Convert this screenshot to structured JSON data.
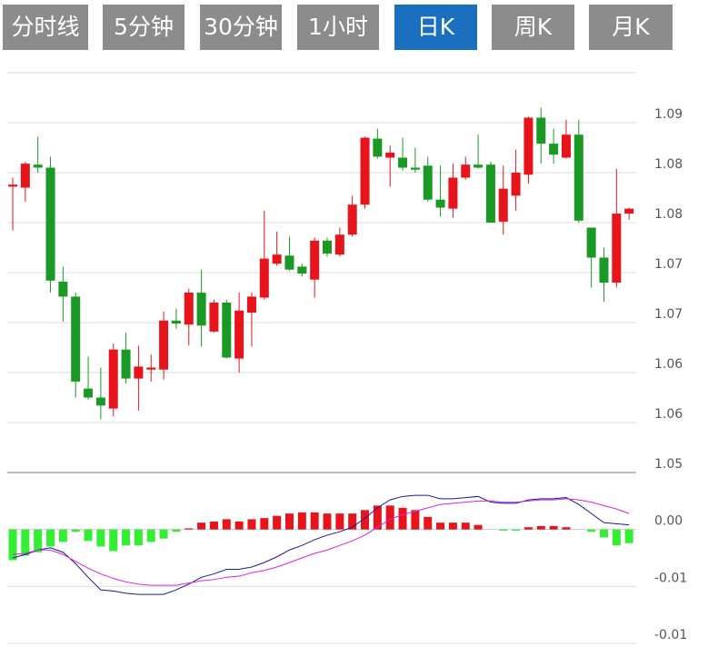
{
  "tabs": {
    "items": [
      "分时线",
      "5分钟",
      "30分钟",
      "1小时",
      "日K",
      "周K",
      "月K"
    ],
    "active": 4
  },
  "chart_data": [
    {
      "type": "candlestick",
      "up_color": "#e8141b",
      "down_color": "#1a9a24",
      "grid": true,
      "ylim": [
        1.0525,
        1.0925
      ],
      "yticks": [
        {
          "value": 1.0525,
          "label": "1.05"
        },
        {
          "value": 1.0575,
          "label": "1.06"
        },
        {
          "value": 1.0625,
          "label": "1.06"
        },
        {
          "value": 1.0675,
          "label": "1.07"
        },
        {
          "value": 1.0725,
          "label": "1.07"
        },
        {
          "value": 1.0775,
          "label": "1.08"
        },
        {
          "value": 1.0825,
          "label": "1.08"
        },
        {
          "value": 1.0875,
          "label": "1.09"
        }
      ],
      "open": [
        1.0811,
        1.081,
        1.0833,
        1.083,
        1.0716,
        1.0701,
        1.0609,
        1.06,
        1.0589,
        1.0648,
        1.0619,
        1.0628,
        1.0628,
        1.0677,
        1.0673,
        1.0705,
        1.0666,
        1.0695,
        1.0639,
        1.0685,
        1.07,
        1.0734,
        1.0742,
        1.0731,
        1.0718,
        1.0757,
        1.0743,
        1.0763,
        1.0793,
        1.0859,
        1.084,
        1.084,
        1.083,
        1.0832,
        1.0798,
        1.0789,
        1.082,
        1.0833,
        1.0833,
        1.0776,
        1.0802,
        1.0823,
        1.088,
        1.0854,
        1.084,
        1.0863,
        1.077,
        1.074,
        1.0715,
        1.0784
      ],
      "high": [
        1.082,
        1.0836,
        1.0861,
        1.0841,
        1.0731,
        1.0705,
        1.0641,
        1.063,
        1.0654,
        1.0665,
        1.0652,
        1.0643,
        1.0686,
        1.0689,
        1.0709,
        1.0728,
        1.0698,
        1.0698,
        1.0705,
        1.0705,
        1.0787,
        1.0766,
        1.0761,
        1.0734,
        1.076,
        1.076,
        1.077,
        1.0802,
        1.0861,
        1.0869,
        1.0852,
        1.086,
        1.085,
        1.0841,
        1.0832,
        1.0834,
        1.0841,
        1.0863,
        1.0836,
        1.0832,
        1.0848,
        1.0881,
        1.089,
        1.0869,
        1.0878,
        1.0878,
        1.077,
        1.075,
        1.0829,
        1.079
      ],
      "low": [
        1.0767,
        1.0796,
        1.0825,
        1.0705,
        1.0676,
        1.06,
        1.0598,
        1.0578,
        1.0581,
        1.0614,
        1.0587,
        1.0616,
        1.0618,
        1.0669,
        1.0652,
        1.0651,
        1.0665,
        1.0639,
        1.0625,
        1.0651,
        1.0698,
        1.0732,
        1.0727,
        1.0721,
        1.07,
        1.0741,
        1.0741,
        1.0761,
        1.0789,
        1.0839,
        1.0811,
        1.0827,
        1.0825,
        1.0796,
        1.0781,
        1.078,
        1.0818,
        1.0829,
        1.0775,
        1.0763,
        1.0787,
        1.0814,
        1.0834,
        1.0834,
        1.0839,
        1.0775,
        1.071,
        1.0696,
        1.071,
        1.0778
      ],
      "close": [
        1.0813,
        1.0834,
        1.083,
        1.0717,
        1.0701,
        1.0616,
        1.06,
        1.0592,
        1.0648,
        1.0619,
        1.0631,
        1.063,
        1.0677,
        1.0674,
        1.0705,
        1.0672,
        1.0695,
        1.064,
        1.0687,
        1.0701,
        1.0739,
        1.0743,
        1.0728,
        1.0724,
        1.0757,
        1.0744,
        1.0763,
        1.0793,
        1.086,
        1.0841,
        1.0845,
        1.083,
        1.0828,
        1.0798,
        1.079,
        1.082,
        1.0833,
        1.083,
        1.0775,
        1.0809,
        1.0825,
        1.088,
        1.0854,
        1.0843,
        1.0863,
        1.0777,
        1.074,
        1.0715,
        1.0784,
        1.0789
      ]
    },
    {
      "type": "macd",
      "grid": true,
      "ylim": [
        -0.01,
        0.005
      ],
      "yticks": [
        {
          "value": -0.01,
          "label": "-0.01"
        },
        {
          "value": -0.005,
          "label": "-0.01"
        },
        {
          "value": 0,
          "label": "0.00"
        }
      ],
      "series": [
        {
          "type": "bar",
          "up_color": "#e8141b",
          "down_color": "#33ee33",
          "values": [
            -0.0027,
            -0.0023,
            -0.002,
            -0.0015,
            -0.0011,
            -0.0002,
            -0.001,
            -0.0015,
            -0.0019,
            -0.0014,
            -0.0014,
            -0.0011,
            -0.0008,
            -0.0002,
            0.0001,
            0.0006,
            0.0007,
            0.0009,
            0.0007,
            0.0009,
            0.001,
            0.0012,
            0.0014,
            0.0015,
            0.0015,
            0.0014,
            0.0014,
            0.0014,
            0.0017,
            0.0021,
            0.0021,
            0.0019,
            0.0017,
            0.0011,
            0.0006,
            0.0006,
            0.0006,
            0.0004,
            0,
            -0.0001,
            -0.0001,
            0.0002,
            0.0003,
            0.0003,
            0.0002,
            0,
            -0.0002,
            -0.0007,
            -0.0014,
            -0.0012
          ]
        },
        {
          "type": "line",
          "color": "#1a1a9c",
          "values": [
            -0.0025,
            -0.0022,
            -0.0018,
            -0.0016,
            -0.002,
            -0.003,
            -0.0042,
            -0.0053,
            -0.0054,
            -0.0056,
            -0.0057,
            -0.0057,
            -0.0057,
            -0.0053,
            -0.0048,
            -0.0042,
            -0.0039,
            -0.0035,
            -0.0035,
            -0.0033,
            -0.0029,
            -0.0024,
            -0.0018,
            -0.0014,
            -0.0009,
            -0.0005,
            -0.0002,
            0.0002,
            0.001,
            0.0019,
            0.0026,
            0.0029,
            0.003,
            0.003,
            0.0027,
            0.0027,
            0.0028,
            0.0029,
            0.0024,
            0.0023,
            0.0023,
            0.0026,
            0.0027,
            0.0027,
            0.0028,
            0.0022,
            0.0014,
            0.0006,
            0.0005,
            0.0004
          ]
        },
        {
          "type": "line",
          "color": "#e020d8",
          "values": [
            -0.0022,
            -0.0021,
            -0.0018,
            -0.0018,
            -0.0022,
            -0.0028,
            -0.0034,
            -0.0039,
            -0.0043,
            -0.0046,
            -0.0048,
            -0.0049,
            -0.0049,
            -0.0049,
            -0.0047,
            -0.0045,
            -0.0044,
            -0.0042,
            -0.0041,
            -0.0038,
            -0.0036,
            -0.0033,
            -0.0029,
            -0.0025,
            -0.0021,
            -0.0018,
            -0.0014,
            -0.001,
            -0.0005,
            0.0002,
            0.0009,
            0.0013,
            0.0016,
            0.0019,
            0.0022,
            0.0023,
            0.0024,
            0.0025,
            0.0025,
            0.0024,
            0.0024,
            0.0025,
            0.0026,
            0.0026,
            0.0027,
            0.0026,
            0.0024,
            0.0021,
            0.0018,
            0.0014
          ]
        }
      ]
    }
  ]
}
